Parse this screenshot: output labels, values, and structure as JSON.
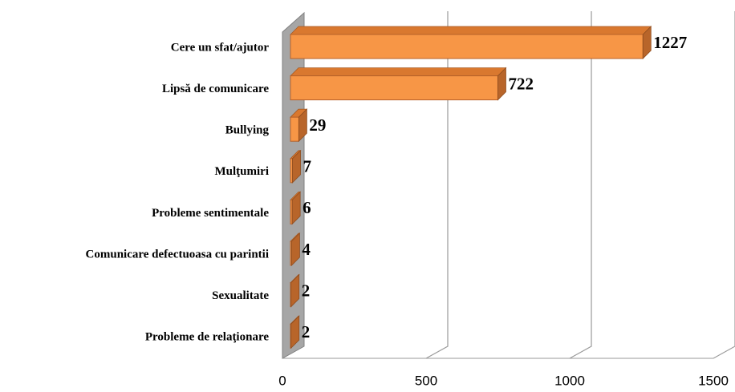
{
  "chart_data": {
    "type": "bar3d_horizontal",
    "categories": [
      "Cere un sfat/ajutor",
      "Lipsă de comunicare",
      "Bullying",
      "Mulţumiri",
      "Probleme sentimentale",
      "Comunicare defectuoasa cu parintii",
      "Sexualitate",
      "Probleme de relaţionare"
    ],
    "values": [
      1227,
      722,
      29,
      7,
      6,
      4,
      2,
      2
    ],
    "color": "#f79646",
    "xlim": [
      0,
      1500
    ],
    "xticks": [
      0,
      500,
      1000,
      1500
    ],
    "grid": true
  }
}
